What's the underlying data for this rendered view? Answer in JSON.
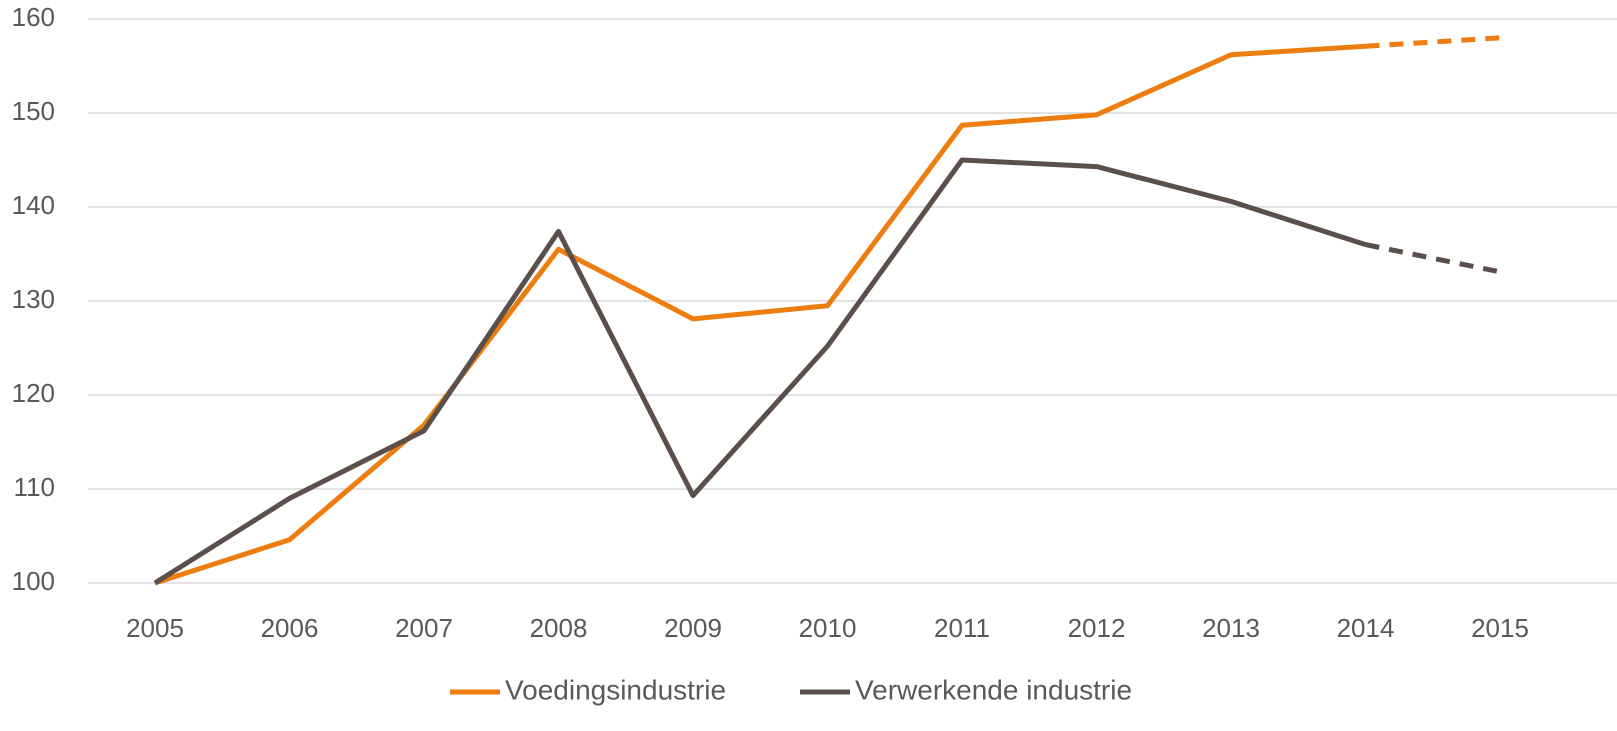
{
  "chart_data": {
    "type": "line",
    "categories": [
      "2005",
      "2006",
      "2007",
      "2008",
      "2009",
      "2010",
      "2011",
      "2012",
      "2013",
      "2014",
      "2015"
    ],
    "series": [
      {
        "name": "Voedingsindustrie",
        "color": "#ed7d0e",
        "values": [
          100,
          104.6,
          116.8,
          135.5,
          128.1,
          129.5,
          148.7,
          149.8,
          156.2,
          157.1,
          158.0
        ],
        "dashed": [
          false,
          false,
          false,
          false,
          false,
          false,
          false,
          false,
          false,
          false,
          true
        ]
      },
      {
        "name": "Verwerkende industrie",
        "color": "#5b4f4b",
        "values": [
          100,
          109.0,
          116.2,
          137.4,
          109.3,
          125.2,
          145.0,
          144.3,
          140.6,
          136.0,
          133.1
        ],
        "dashed": [
          false,
          false,
          false,
          false,
          false,
          false,
          false,
          false,
          false,
          false,
          true
        ]
      }
    ],
    "ylim": [
      100,
      160
    ],
    "yticks": [
      100,
      110,
      120,
      130,
      140,
      150,
      160
    ],
    "grid": true,
    "legend": "bottom"
  }
}
